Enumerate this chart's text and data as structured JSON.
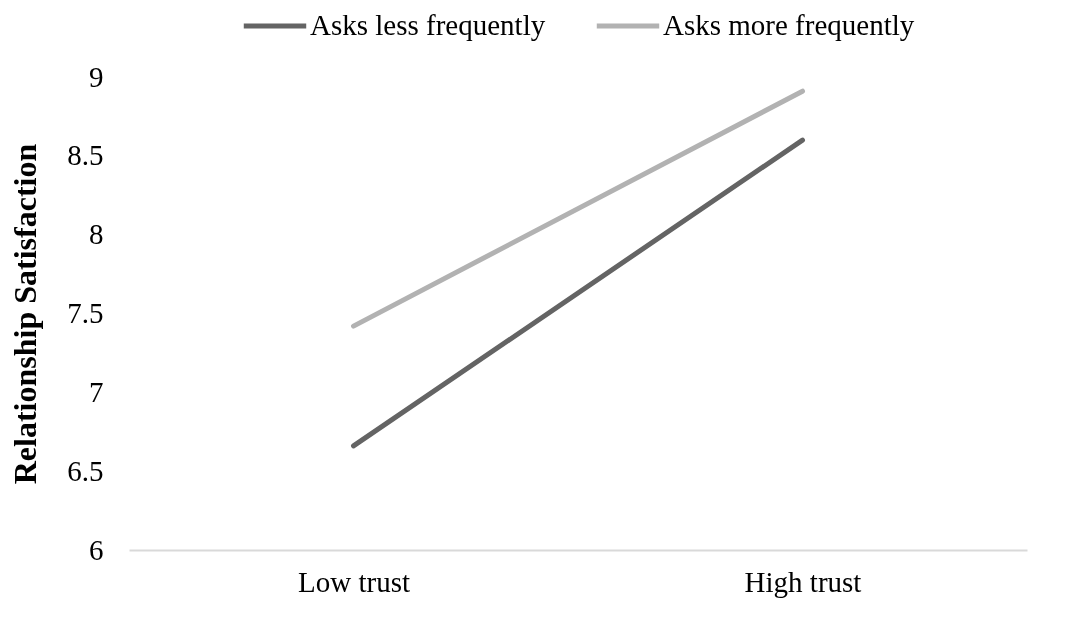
{
  "chart_data": {
    "type": "line",
    "ylabel": "Relationship Satisfaction",
    "categories": [
      "Low trust",
      "High trust"
    ],
    "series": [
      {
        "name": "Asks less frequently",
        "color": "#646464",
        "values": [
          6.66,
          8.6
        ]
      },
      {
        "name": "Asks more frequently",
        "color": "#b2b2b2",
        "values": [
          7.42,
          8.91
        ]
      }
    ],
    "ylim": [
      6,
      9
    ],
    "yticks": [
      6,
      6.5,
      7,
      7.5,
      8,
      8.5,
      9
    ],
    "grid": false,
    "legend": "top",
    "line_style": "solid"
  }
}
